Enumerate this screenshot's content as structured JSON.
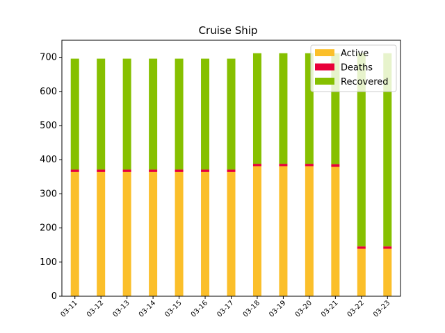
{
  "chart_data": {
    "type": "bar",
    "stacked": true,
    "title": "Cruise Ship",
    "xlabel": "",
    "ylabel": "",
    "categories": [
      "03-11",
      "03-12",
      "03-13",
      "03-14",
      "03-15",
      "03-16",
      "03-17",
      "03-18",
      "03-19",
      "03-20",
      "03-21",
      "03-22",
      "03-23"
    ],
    "ylim": [
      0,
      750
    ],
    "yticks": [
      0,
      100,
      200,
      300,
      400,
      500,
      600,
      700
    ],
    "grid": false,
    "legend_position": "top-right",
    "series": [
      {
        "name": "Active",
        "color": "#fbbf2a",
        "values": [
          364,
          364,
          364,
          364,
          364,
          364,
          364,
          381,
          381,
          381,
          379,
          139,
          139
        ]
      },
      {
        "name": "Deaths",
        "color": "#e8003a",
        "values": [
          7,
          7,
          7,
          7,
          7,
          7,
          7,
          7,
          7,
          7,
          8,
          7,
          7
        ]
      },
      {
        "name": "Recovered",
        "color": "#86c000",
        "values": [
          325,
          325,
          325,
          325,
          325,
          325,
          325,
          324,
          324,
          324,
          325,
          566,
          566
        ]
      }
    ]
  }
}
